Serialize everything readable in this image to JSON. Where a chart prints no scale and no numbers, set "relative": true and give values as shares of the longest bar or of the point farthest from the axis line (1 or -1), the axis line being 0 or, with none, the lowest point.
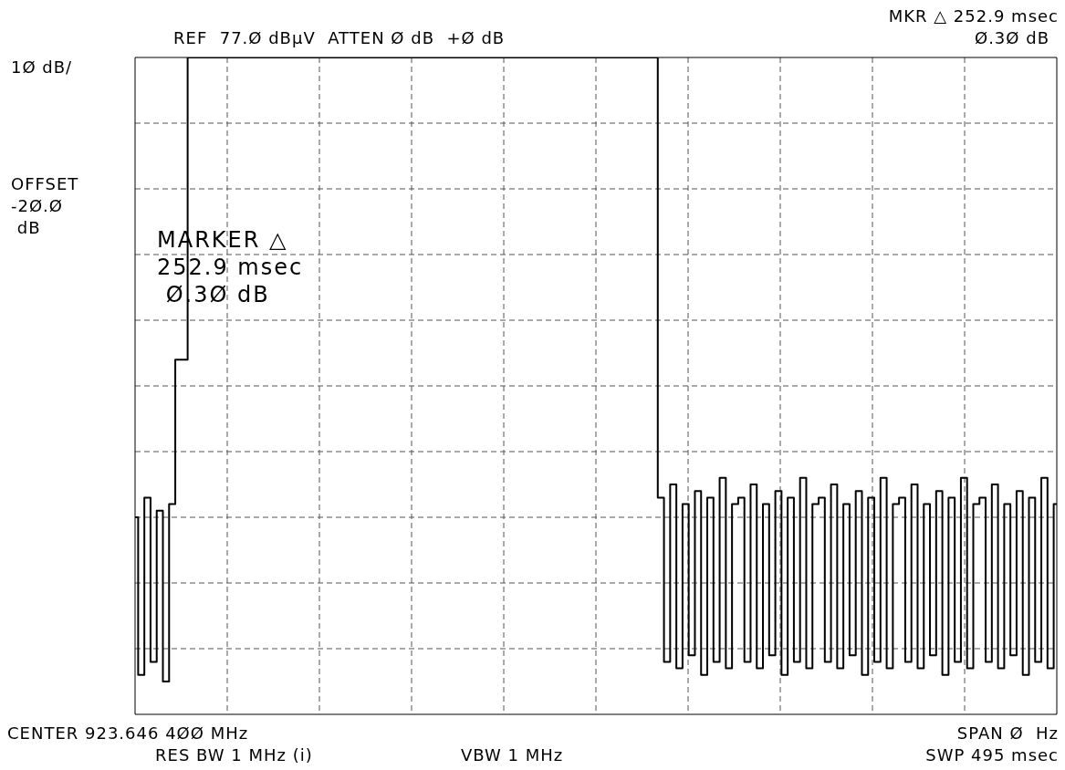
{
  "chart_data": {
    "type": "step",
    "relative": true,
    "grid": true,
    "legend": false,
    "marker": "none",
    "line_style": "solid",
    "annotations": [
      "REF  77.Ø dBµV  ATTEN Ø dB  +Ø dB",
      "MKR △ 252.9 msec",
      "Ø.3Ø dB",
      "1Ø dB/",
      "OFFSET\n-2Ø.Ø\n dB",
      "MARKER △\n252.9 msec\n Ø.3Ø dB",
      "CENTER 923.646 4ØØ MHz",
      "SPAN Ø  Hz",
      "RES BW 1 MHz (i)",
      "VBW 1 MHz",
      "SWP 495 msec"
    ],
    "categories": [
      null,
      null,
      null,
      null,
      null,
      null,
      null,
      null,
      null,
      null,
      null,
      null,
      null,
      null,
      null,
      null,
      null,
      null,
      null,
      null,
      null,
      null,
      null,
      null,
      null,
      null,
      null,
      null,
      null,
      null,
      null,
      null,
      null,
      null,
      null,
      null,
      null,
      null,
      null,
      null,
      null,
      null,
      null,
      null,
      null,
      null,
      null,
      null,
      null,
      null,
      null,
      null,
      null,
      null,
      null,
      null,
      null,
      null,
      null,
      null,
      null,
      null,
      null,
      null,
      null,
      null,
      null,
      null,
      null,
      null,
      null,
      null,
      null,
      null,
      null,
      null,
      null,
      null,
      null,
      null,
      null,
      null,
      null,
      null,
      null,
      null,
      null,
      null,
      null,
      null,
      null,
      null,
      null,
      null,
      null,
      null,
      null,
      null,
      null,
      null,
      null,
      null,
      null,
      null,
      null,
      null,
      null,
      null,
      null,
      null,
      null,
      null,
      null,
      null,
      null,
      null,
      null,
      null,
      null,
      null,
      null,
      null,
      null,
      null,
      null,
      null,
      null,
      null,
      null,
      null,
      null,
      null,
      null,
      null,
      null,
      null,
      null,
      null,
      null,
      null,
      null,
      null,
      null,
      null,
      null,
      null,
      null,
      null,
      null,
      null
    ],
    "series": [
      {
        "color": "#000000",
        "values": [
          0.3,
          0.06,
          0.33,
          0.08,
          0.31,
          0.05,
          0.32,
          0.54,
          0.54,
          1,
          1,
          1,
          1,
          1,
          1,
          1,
          1,
          1,
          1,
          1,
          1,
          1,
          1,
          1,
          1,
          1,
          1,
          1,
          1,
          1,
          1,
          1,
          1,
          1,
          1,
          1,
          1,
          1,
          1,
          1,
          1,
          1,
          1,
          1,
          1,
          1,
          1,
          1,
          1,
          1,
          1,
          1,
          1,
          1,
          1,
          1,
          1,
          1,
          1,
          1,
          1,
          1,
          1,
          1,
          1,
          1,
          1,
          1,
          1,
          1,
          1,
          1,
          1,
          1,
          1,
          1,
          1,
          1,
          1,
          1,
          1,
          1,
          1,
          1,
          1,
          0.33,
          0.08,
          0.35,
          0.07,
          0.32,
          0.09,
          0.34,
          0.06,
          0.33,
          0.08,
          0.36,
          0.07,
          0.32,
          0.33,
          0.08,
          0.35,
          0.07,
          0.32,
          0.09,
          0.34,
          0.06,
          0.33,
          0.08,
          0.36,
          0.07,
          0.32,
          0.33,
          0.08,
          0.35,
          0.07,
          0.32,
          0.09,
          0.34,
          0.06,
          0.33,
          0.08,
          0.36,
          0.07,
          0.32,
          0.33,
          0.08,
          0.35,
          0.07,
          0.32,
          0.09,
          0.34,
          0.06,
          0.33,
          0.08,
          0.36,
          0.07,
          0.32,
          0.33,
          0.08,
          0.35,
          0.07,
          0.32,
          0.09,
          0.34,
          0.06,
          0.33,
          0.08,
          0.36,
          0.07,
          0.32
        ]
      }
    ]
  }
}
